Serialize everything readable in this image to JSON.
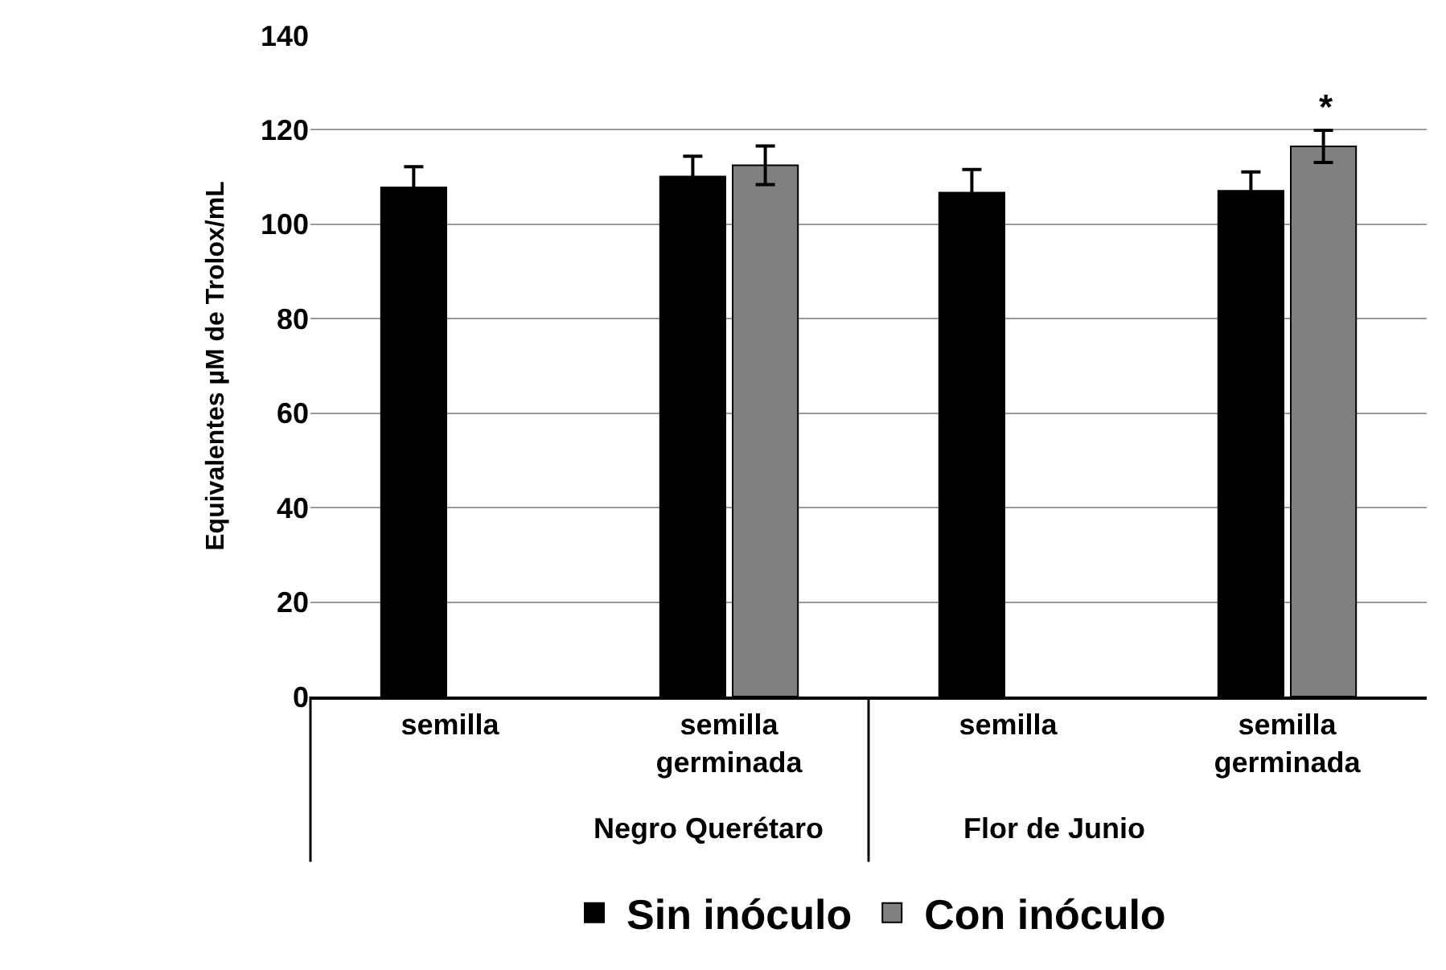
{
  "chart_data": {
    "type": "bar",
    "ylabel": "Equivalentes µM de Trolox/mL",
    "categories": [
      "semilla",
      "semilla germinada",
      "semilla",
      "semilla germinada"
    ],
    "series": [
      {
        "name": "Sin inóculo",
        "color": "#000000",
        "values": [
          107.8,
          110.1,
          106.7,
          107.1
        ],
        "errors": [
          4.4,
          4.3,
          4.9,
          4.0
        ]
      },
      {
        "name": "Con inóculo",
        "color": "#808080",
        "values": [
          null,
          112.5,
          null,
          116.5
        ],
        "errors": [
          null,
          4.1,
          null,
          3.4
        ]
      }
    ],
    "ylim": [
      0,
      140
    ],
    "yticks": [
      0,
      20,
      40,
      60,
      80,
      100,
      120,
      140
    ],
    "grid": "y",
    "legend": "bottom",
    "annotations": [
      "*",
      "Negro Querétaro",
      "Flor de Junio"
    ]
  }
}
